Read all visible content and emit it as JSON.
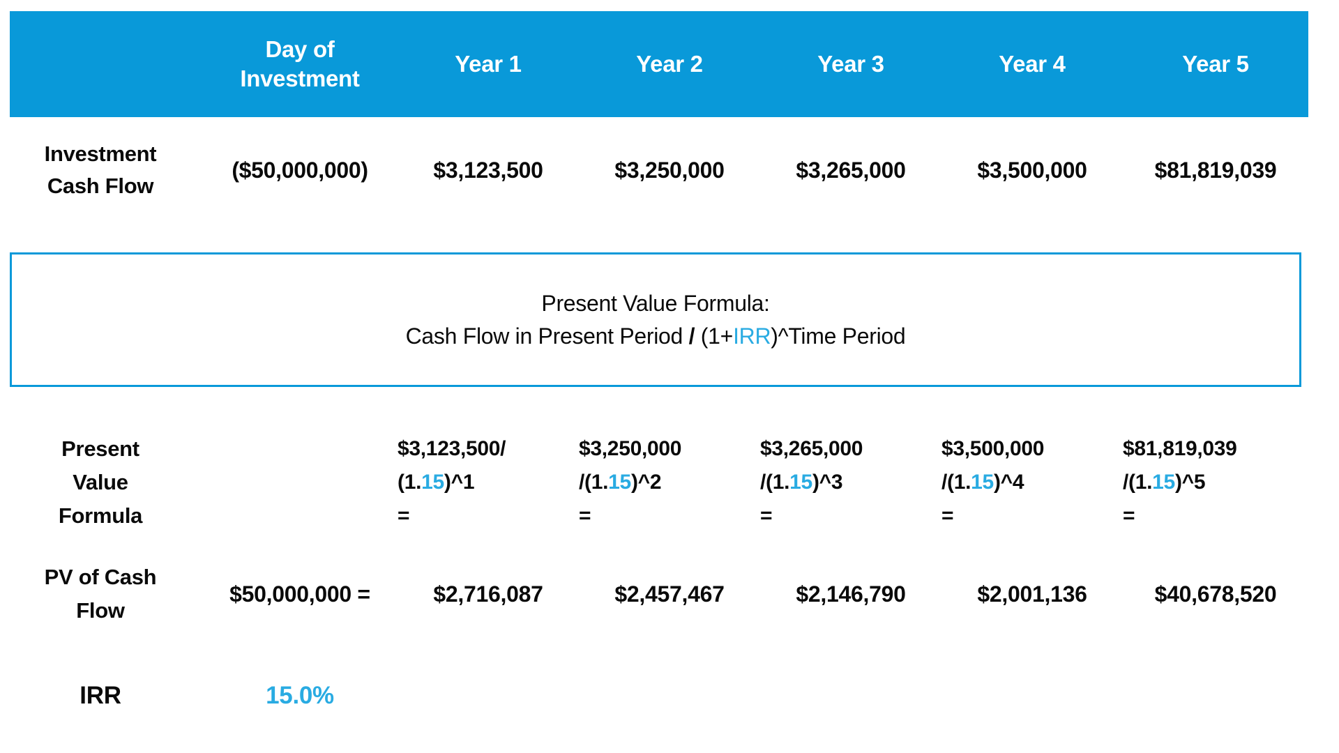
{
  "palette": {
    "header_blue": "#0999D9",
    "accent_blue": "#29ABE2",
    "text_color": "#0a0a0a"
  },
  "header": {
    "columns": [
      "",
      "Day of\nInvestment",
      "Year 1",
      "Year 2",
      "Year 3",
      "Year 4",
      "Year 5"
    ]
  },
  "rows": {
    "investment_cash_flow": {
      "label": "Investment\nCash Flow",
      "values": [
        "($50,000,000)",
        "$3,123,500",
        "$3,250,000",
        "$3,265,000",
        "$3,500,000",
        "$81,819,039"
      ]
    },
    "pv_formula": {
      "label": "Present\nValue\nFormula",
      "cells": [
        {
          "numerator": "$3,123,500/",
          "denom_pre": "(1.",
          "rate": "15",
          "denom_post": ")^1",
          "equals": "="
        },
        {
          "numerator": "$3,250,000",
          "denom_pre": "/(1.",
          "rate": "15",
          "denom_post": ")^2",
          "equals": "="
        },
        {
          "numerator": "$3,265,000",
          "denom_pre": "/(1.",
          "rate": "15",
          "denom_post": ")^3",
          "equals": "="
        },
        {
          "numerator": "$3,500,000",
          "denom_pre": "/(1.",
          "rate": "15",
          "denom_post": ")^4",
          "equals": "="
        },
        {
          "numerator": "$81,819,039",
          "denom_pre": "/(1.",
          "rate": "15",
          "denom_post": ")^5",
          "equals": "="
        }
      ]
    },
    "pv_of_cash_flow": {
      "label": "PV of Cash\nFlow",
      "day_of_investment_value": "$50,000,000 =",
      "values": [
        "$2,716,087",
        "$2,457,467",
        "$2,146,790",
        "$2,001,136",
        "$40,678,520"
      ]
    },
    "irr": {
      "label": "IRR",
      "value": "15.0%"
    }
  },
  "formula_box": {
    "title": "Present Value Formula:",
    "line2_part1": "Cash Flow in Present Period ",
    "line2_slash": "/",
    "line2_part2": " (1+",
    "line2_irr": "IRR",
    "line2_part3": ")^Time Period"
  },
  "chart_data": {
    "type": "table",
    "categories": [
      "Day of Investment",
      "Year 1",
      "Year 2",
      "Year 3",
      "Year 4",
      "Year 5"
    ],
    "series": [
      {
        "name": "Investment Cash Flow",
        "values": [
          -50000000,
          3123500,
          3250000,
          3265000,
          3500000,
          81819039
        ]
      },
      {
        "name": "PV of Cash Flow",
        "values": [
          50000000,
          2716087,
          2457467,
          2146790,
          2001136,
          40678520
        ]
      }
    ],
    "irr_percent": 15.0
  }
}
